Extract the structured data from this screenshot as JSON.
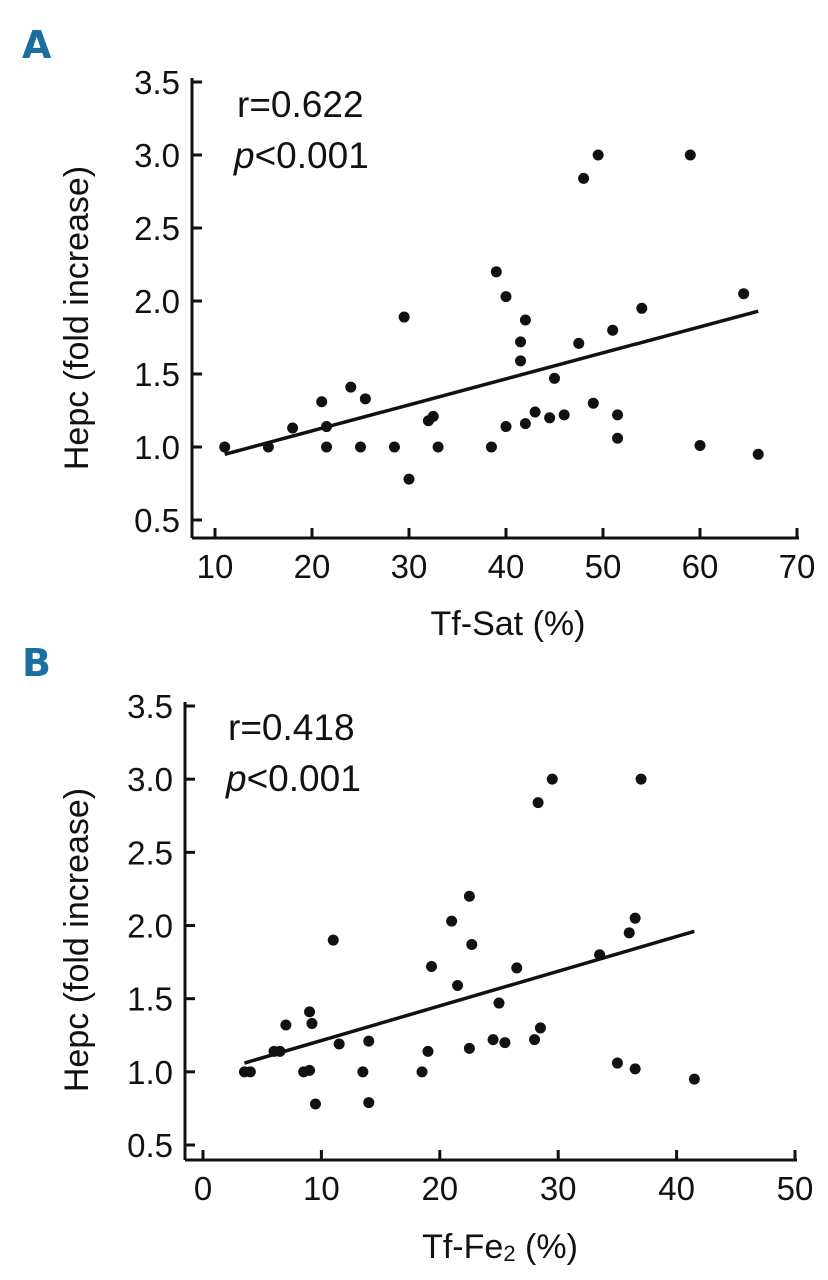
{
  "chart_data": [
    {
      "panel": "A",
      "type": "scatter",
      "xlabel": "Tf-Sat (%)",
      "ylabel": "Hepc (fold increase)",
      "xlim": [
        10,
        70
      ],
      "ylim": [
        0.5,
        3.5
      ],
      "xticks": [
        "10",
        "20",
        "30",
        "40",
        "50",
        "60",
        "70"
      ],
      "yticks": [
        "0.5",
        "1.0",
        "1.5",
        "2.0",
        "2.5",
        "3.0",
        "3.5"
      ],
      "r_label": "r=0.622",
      "p_symbol": "p",
      "p_rest": "<0.001",
      "fit": {
        "x": [
          11,
          66
        ],
        "y": [
          0.95,
          1.93
        ]
      },
      "points": [
        [
          11,
          1.0
        ],
        [
          15.5,
          1.0
        ],
        [
          18,
          1.13
        ],
        [
          21,
          1.31
        ],
        [
          21.5,
          1.14
        ],
        [
          21.5,
          1.0
        ],
        [
          24,
          1.41
        ],
        [
          25,
          1.0
        ],
        [
          25.5,
          1.33
        ],
        [
          28.5,
          1.0
        ],
        [
          29.5,
          1.89
        ],
        [
          30,
          0.78
        ],
        [
          32,
          1.18
        ],
        [
          32.5,
          1.21
        ],
        [
          33,
          1.0
        ],
        [
          38.5,
          1.0
        ],
        [
          39,
          2.2
        ],
        [
          40,
          2.03
        ],
        [
          40,
          1.14
        ],
        [
          41.5,
          1.72
        ],
        [
          41.5,
          1.59
        ],
        [
          42,
          1.87
        ],
        [
          42,
          1.16
        ],
        [
          43,
          1.24
        ],
        [
          44.5,
          1.2
        ],
        [
          45,
          1.47
        ],
        [
          46,
          1.22
        ],
        [
          47.5,
          1.71
        ],
        [
          48,
          2.84
        ],
        [
          49,
          1.3
        ],
        [
          49.5,
          3.0
        ],
        [
          51,
          1.8
        ],
        [
          51.5,
          1.22
        ],
        [
          51.5,
          1.06
        ],
        [
          54,
          1.95
        ],
        [
          59,
          3.0
        ],
        [
          60,
          1.01
        ],
        [
          64.5,
          2.05
        ],
        [
          66,
          0.95
        ]
      ]
    },
    {
      "panel": "B",
      "type": "scatter",
      "xlabel_main": "Tf-Fe",
      "xlabel_sub": "2",
      "xlabel_end": " (%)",
      "ylabel": "Hepc (fold increase)",
      "xlim": [
        0,
        50
      ],
      "ylim": [
        0.5,
        3.5
      ],
      "xticks": [
        "0",
        "10",
        "20",
        "30",
        "40",
        "50"
      ],
      "yticks": [
        "0.5",
        "1.0",
        "1.5",
        "2.0",
        "2.5",
        "3.0",
        "3.5"
      ],
      "r_label": "r=0.418",
      "p_symbol": "p",
      "p_rest": "<0.001",
      "fit": {
        "x": [
          3.5,
          41.5
        ],
        "y": [
          1.06,
          1.96
        ]
      },
      "points": [
        [
          3.5,
          1.0
        ],
        [
          4,
          1.0
        ],
        [
          6,
          1.14
        ],
        [
          6.5,
          1.14
        ],
        [
          7,
          1.32
        ],
        [
          8.5,
          1.0
        ],
        [
          9,
          1.01
        ],
        [
          9,
          1.41
        ],
        [
          9.2,
          1.33
        ],
        [
          9.5,
          0.78
        ],
        [
          11,
          1.9
        ],
        [
          11.5,
          1.19
        ],
        [
          13.5,
          1.0
        ],
        [
          14,
          1.21
        ],
        [
          14,
          0.79
        ],
        [
          18.5,
          1.0
        ],
        [
          19,
          1.14
        ],
        [
          19.3,
          1.72
        ],
        [
          21,
          2.03
        ],
        [
          21.5,
          1.59
        ],
        [
          22.5,
          2.2
        ],
        [
          22.5,
          1.16
        ],
        [
          22.7,
          1.87
        ],
        [
          24.5,
          1.22
        ],
        [
          25,
          1.47
        ],
        [
          25.5,
          1.2
        ],
        [
          26.5,
          1.71
        ],
        [
          28,
          1.22
        ],
        [
          28.3,
          2.84
        ],
        [
          28.5,
          1.3
        ],
        [
          29.5,
          3.0
        ],
        [
          33.5,
          1.8
        ],
        [
          35,
          1.06
        ],
        [
          36,
          1.95
        ],
        [
          36.5,
          2.05
        ],
        [
          36.5,
          1.02
        ],
        [
          37,
          3.0
        ],
        [
          41.5,
          0.95
        ]
      ]
    }
  ]
}
